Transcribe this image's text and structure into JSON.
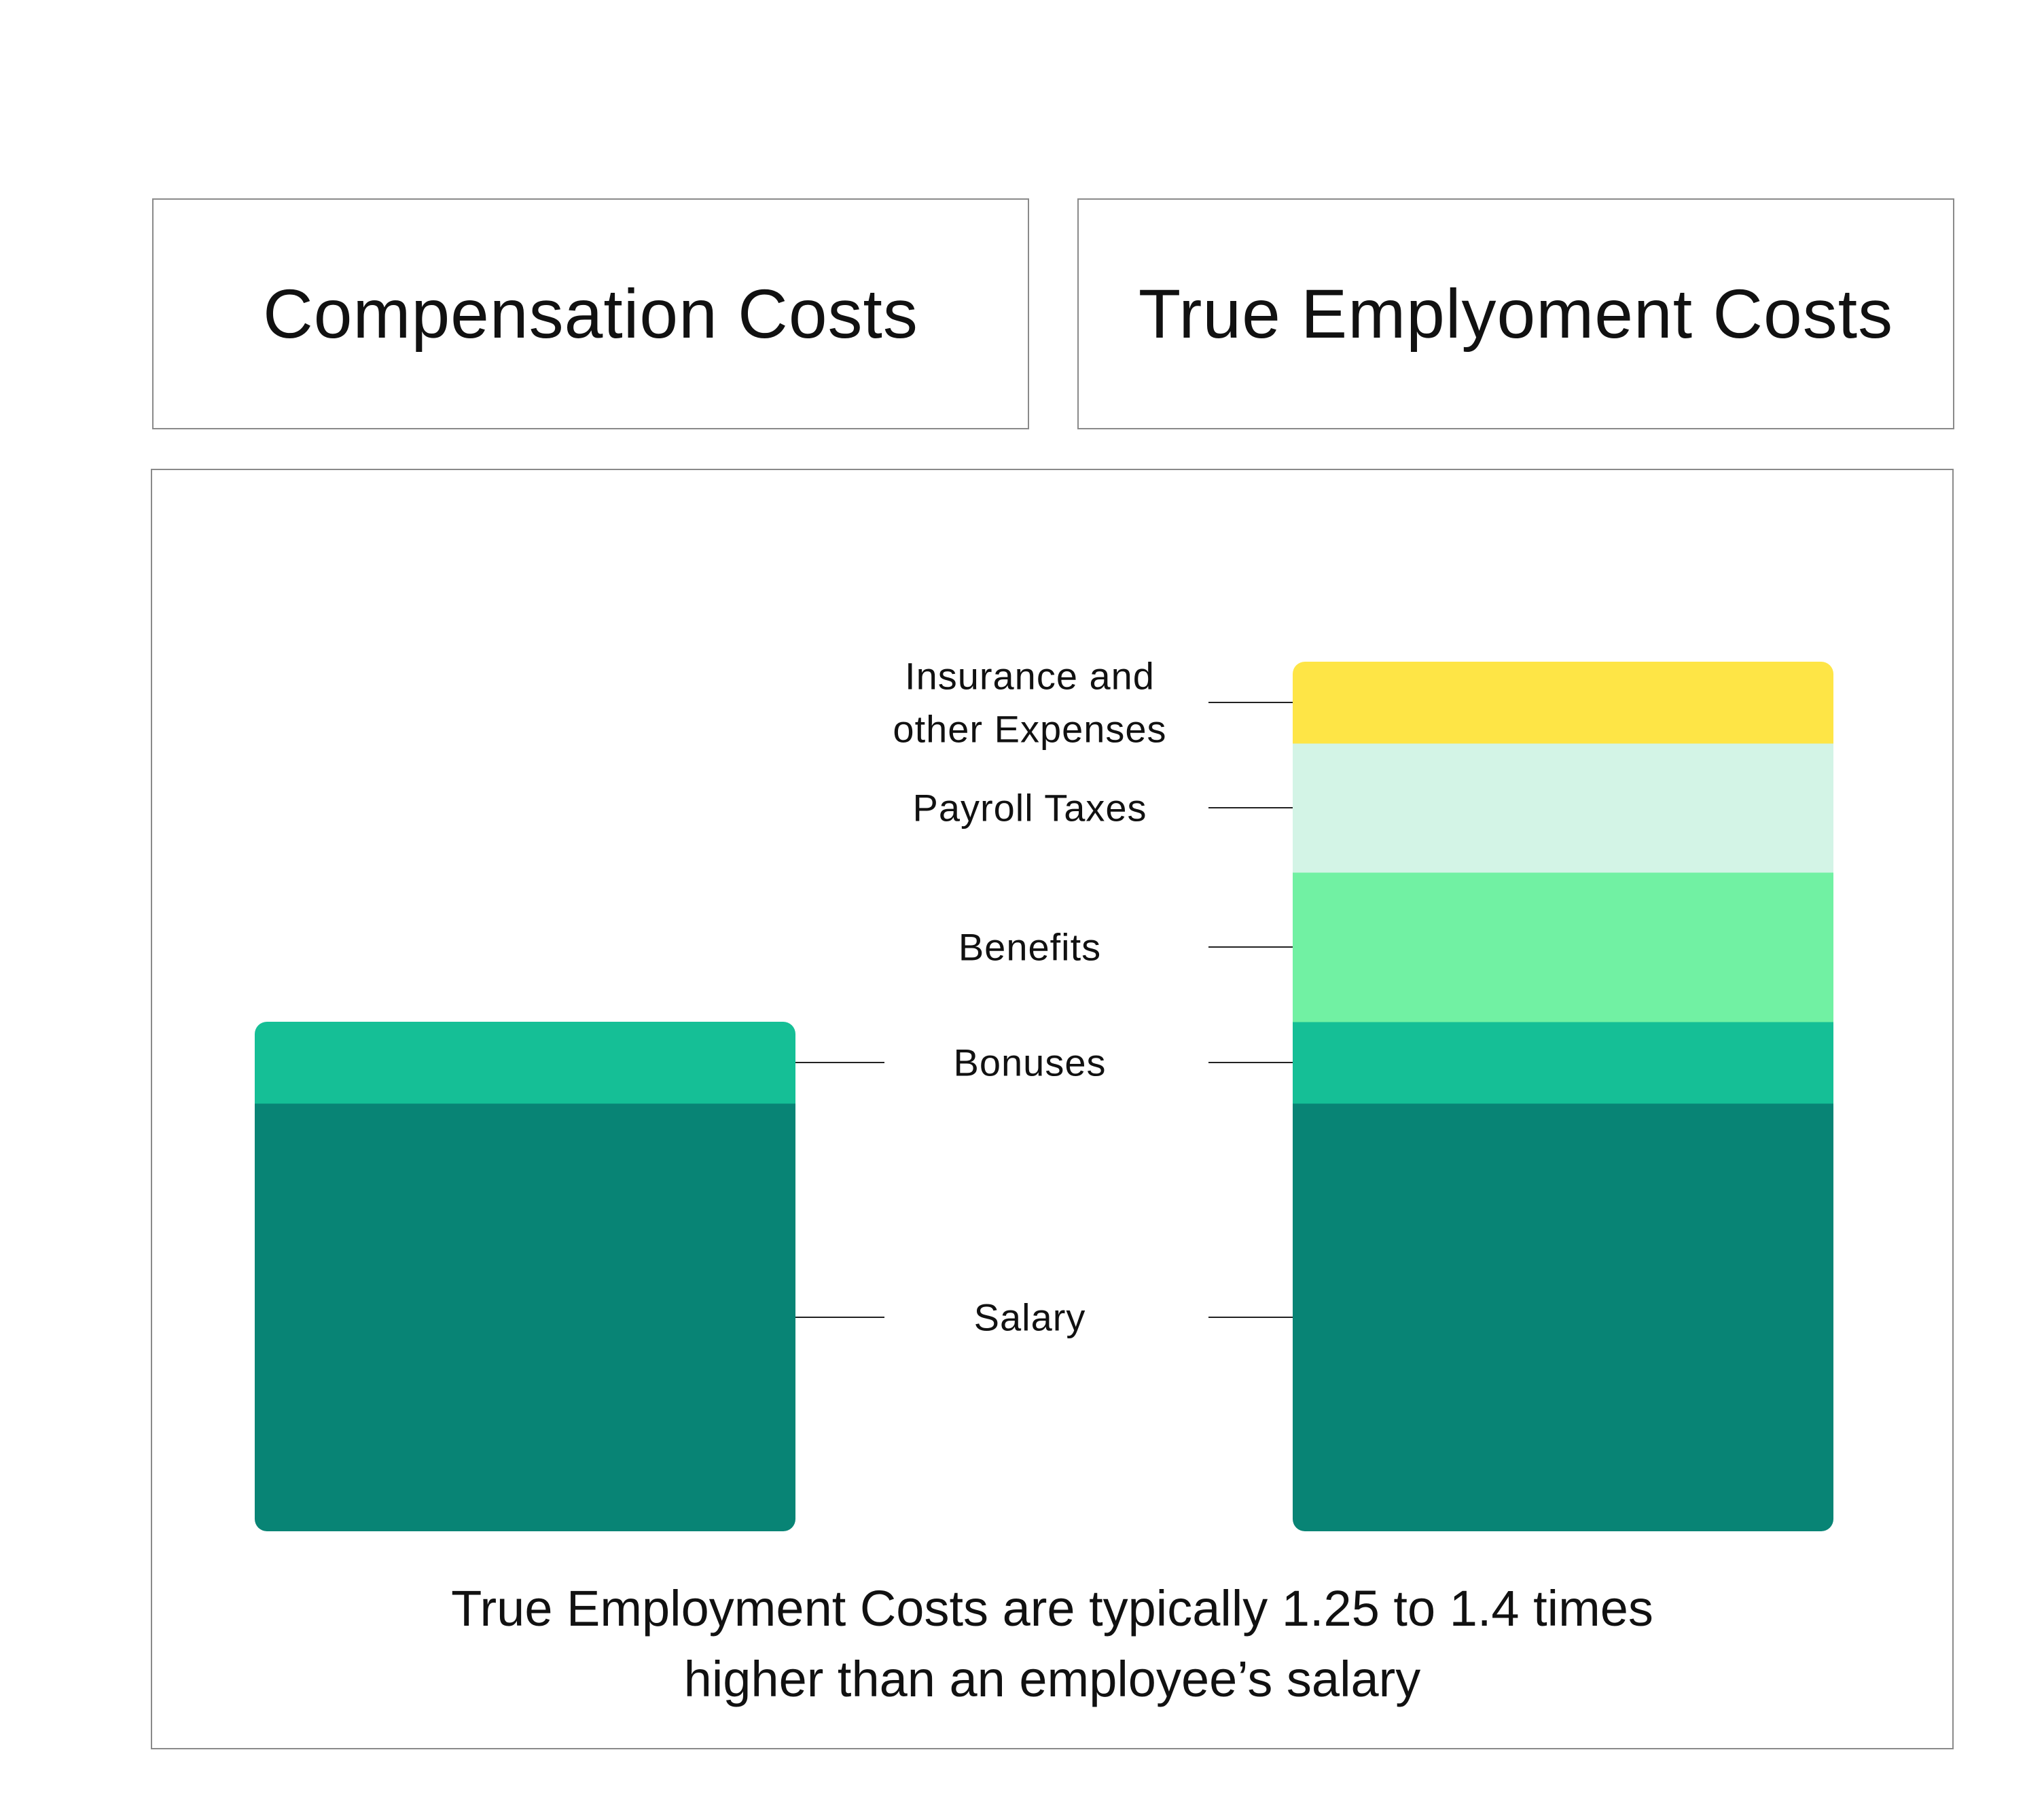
{
  "header": {
    "left_title": "Compensation Costs",
    "right_title": "True Emplyoment Costs"
  },
  "chart_data": {
    "type": "bar",
    "stacked": true,
    "categories": [
      "Compensation Costs",
      "True Emplyoment Costs"
    ],
    "series": [
      {
        "name": "Salary",
        "label_lines": [
          "Salary"
        ],
        "color": "#088475",
        "values": [
          63,
          63
        ]
      },
      {
        "name": "Bonuses",
        "label_lines": [
          "Bonuses"
        ],
        "color": "#15BF96",
        "values": [
          12,
          12
        ]
      },
      {
        "name": "Benefits",
        "label_lines": [
          "Benefits"
        ],
        "color": "#71F1A3",
        "values": [
          0,
          22
        ]
      },
      {
        "name": "Payroll Taxes",
        "label_lines": [
          "Payroll Taxes"
        ],
        "color": "#D3F4E6",
        "values": [
          0,
          19
        ]
      },
      {
        "name": "Insurance and other Expenses",
        "label_lines": [
          "Insurance and",
          "other Expenses"
        ],
        "color": "#FEE546",
        "values": [
          0,
          12
        ]
      }
    ],
    "title": "",
    "xlabel": "",
    "ylabel": "",
    "grid": false,
    "legend": "center"
  },
  "caption": {
    "line1": "True Employment Costs are typically 1.25 to 1.4 times",
    "line2": "higher than an employee’s salary"
  }
}
